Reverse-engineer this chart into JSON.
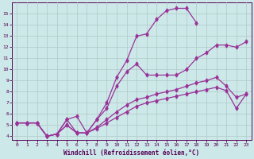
{
  "xlabel": "Windchill (Refroidissement éolien,°C)",
  "bg_color": "#cde8e8",
  "grid_color": "#b0c8c8",
  "line_color": "#993399",
  "xlim": [
    -0.5,
    23.5
  ],
  "ylim": [
    3.7,
    16.0
  ],
  "xticks": [
    0,
    1,
    2,
    3,
    4,
    5,
    6,
    7,
    8,
    9,
    10,
    11,
    12,
    13,
    14,
    15,
    16,
    17,
    18,
    19,
    20,
    21,
    22,
    23
  ],
  "yticks": [
    4,
    5,
    6,
    7,
    8,
    9,
    10,
    11,
    12,
    13,
    14,
    15
  ],
  "line_upper_x": [
    0,
    1,
    2,
    3,
    4,
    5,
    6,
    7,
    8,
    9,
    10,
    11,
    12,
    13,
    14,
    15,
    16,
    17,
    18
  ],
  "line_upper_y": [
    5.2,
    5.2,
    5.2,
    4.0,
    4.2,
    5.5,
    5.8,
    4.3,
    5.5,
    7.0,
    9.3,
    10.8,
    13.0,
    13.2,
    14.5,
    15.3,
    15.5,
    15.5,
    14.2
  ],
  "line_mid_x": [
    0,
    1,
    2,
    3,
    4,
    5,
    6,
    7,
    8,
    9,
    10,
    11,
    12,
    13,
    14,
    15,
    16,
    17,
    18,
    19,
    20,
    21,
    22,
    23
  ],
  "line_mid_y": [
    5.2,
    5.2,
    5.2,
    4.0,
    4.2,
    5.5,
    4.3,
    4.3,
    5.5,
    6.5,
    8.5,
    9.8,
    10.5,
    9.5,
    9.5,
    9.5,
    9.5,
    10.0,
    11.0,
    11.5,
    12.2,
    12.2,
    12.0,
    12.5
  ],
  "line_diag_x": [
    0,
    1,
    2,
    3,
    4,
    5,
    6,
    7,
    8,
    9,
    10,
    11,
    12,
    13,
    14,
    15,
    16,
    17,
    18,
    19,
    20,
    21,
    22,
    23
  ],
  "line_diag_y": [
    5.2,
    5.2,
    5.2,
    4.0,
    4.2,
    5.0,
    4.3,
    4.3,
    4.8,
    5.5,
    6.2,
    6.8,
    7.3,
    7.5,
    7.8,
    8.0,
    8.2,
    8.5,
    8.8,
    9.0,
    9.3,
    8.5,
    7.5,
    7.8
  ],
  "line_low_x": [
    0,
    1,
    2,
    3,
    4,
    5,
    6,
    7,
    8,
    9,
    10,
    11,
    12,
    13,
    14,
    15,
    16,
    17,
    18,
    19,
    20,
    21,
    22,
    23
  ],
  "line_low_y": [
    5.2,
    5.2,
    5.2,
    4.0,
    4.2,
    5.0,
    4.3,
    4.3,
    4.7,
    5.2,
    5.7,
    6.2,
    6.7,
    7.0,
    7.2,
    7.4,
    7.6,
    7.8,
    8.0,
    8.2,
    8.4,
    8.1,
    6.5,
    7.8
  ]
}
